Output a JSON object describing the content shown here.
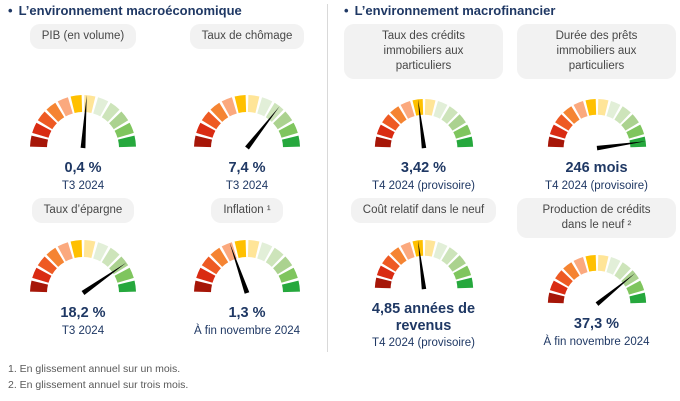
{
  "ui": {
    "bullet": "•"
  },
  "sections": [
    {
      "title": "L’environnement macroéconomique",
      "gauges": [
        {
          "label": "PIB (en volume)",
          "value": "0,4 %",
          "period": "T3 2024",
          "needle_angle": 4
        },
        {
          "label": "Taux de chômage",
          "value": "7,4 %",
          "period": "T3 2024",
          "needle_angle": 38
        },
        {
          "label": "Taux d’épargne",
          "value": "18,2 %",
          "period": "T3 2024",
          "needle_angle": 55
        },
        {
          "label": "Inflation ¹",
          "value": "1,3 %",
          "period": "À fin novembre 2024",
          "needle_angle": -19
        }
      ]
    },
    {
      "title": "L’environnement macrofinancier",
      "gauges": [
        {
          "label": "Taux des crédits immobiliers aux particuliers",
          "value": "3,42 %",
          "period": "T4 2024 (provisoire)",
          "needle_angle": -7
        },
        {
          "label": "Durée des prêts immobiliers aux particuliers",
          "value": "246 mois",
          "period": "T4 2024 (provisoire)",
          "needle_angle": 82
        },
        {
          "label": "Coût relatif dans le neuf",
          "value": "4,85 années de revenus",
          "period": "T4 2024 (provisoire)",
          "needle_angle": -7
        },
        {
          "label": "Production de crédits dans le neuf ²",
          "value": "37,3 %",
          "period": "À fin novembre 2024",
          "needle_angle": 51
        }
      ]
    }
  ],
  "footnotes": [
    "1. En glissement annuel sur un mois.",
    "2. En glissement annuel sur trois mois."
  ],
  "gauge_style": {
    "segment_colors": [
      "#a61608",
      "#d92b12",
      "#ee5a23",
      "#f58432",
      "#fba97e",
      "#ffc000",
      "#ffe598",
      "#e2efd8",
      "#cde4ba",
      "#abd28f",
      "#7fc55e",
      "#26a83d"
    ],
    "needle_color": "#000000",
    "segments": 12,
    "arc_span_deg": 180
  },
  "colors": {
    "heading": "#1f3864",
    "value_text": "#1f3864",
    "pill_bg": "#f2f2f2",
    "pill_text": "#474747",
    "footnote": "#595959",
    "divider": "#d9d9d9",
    "background": "#ffffff"
  },
  "chart_data": [
    {
      "type": "gauge",
      "title": "PIB (en volume)",
      "value": 0.4,
      "unit": "%",
      "display_value": "0,4 %",
      "period": "T3 2024",
      "needle_position_fraction": 0.52,
      "scale": "dark red (bad) to green (good), 12 segments over 180°"
    },
    {
      "type": "gauge",
      "title": "Taux de chômage",
      "value": 7.4,
      "unit": "%",
      "display_value": "7,4 %",
      "period": "T3 2024",
      "needle_position_fraction": 0.71,
      "scale": "dark red (bad) to green (good), 12 segments over 180°"
    },
    {
      "type": "gauge",
      "title": "Taux d’épargne",
      "value": 18.2,
      "unit": "%",
      "display_value": "18,2 %",
      "period": "T3 2024",
      "needle_position_fraction": 0.81,
      "scale": "dark red (bad) to green (good), 12 segments over 180°"
    },
    {
      "type": "gauge",
      "title": "Inflation",
      "value": 1.3,
      "unit": "%",
      "display_value": "1,3 %",
      "period": "À fin novembre 2024",
      "footnote_ref": 1,
      "needle_position_fraction": 0.39,
      "scale": "dark red (bad) to green (good), 12 segments over 180°"
    },
    {
      "type": "gauge",
      "title": "Taux des crédits immobiliers aux particuliers",
      "value": 3.42,
      "unit": "%",
      "display_value": "3,42 %",
      "period": "T4 2024 (provisoire)",
      "needle_position_fraction": 0.46,
      "scale": "dark red (bad) to green (good), 12 segments over 180°"
    },
    {
      "type": "gauge",
      "title": "Durée des prêts immobiliers aux particuliers",
      "value": 246,
      "unit": "mois",
      "display_value": "246 mois",
      "period": "T4 2024 (provisoire)",
      "needle_position_fraction": 0.96,
      "scale": "dark red (bad) to green (good), 12 segments over 180°"
    },
    {
      "type": "gauge",
      "title": "Coût relatif dans le neuf",
      "value": 4.85,
      "unit": "années de revenus",
      "display_value": "4,85 années de revenus",
      "period": "T4 2024 (provisoire)",
      "needle_position_fraction": 0.46,
      "scale": "dark red (bad) to green (good), 12 segments over 180°"
    },
    {
      "type": "gauge",
      "title": "Production de crédits dans le neuf",
      "value": 37.3,
      "unit": "%",
      "display_value": "37,3 %",
      "period": "À fin novembre 2024",
      "footnote_ref": 2,
      "needle_position_fraction": 0.78,
      "scale": "dark red (bad) to green (good), 12 segments over 180°"
    }
  ]
}
